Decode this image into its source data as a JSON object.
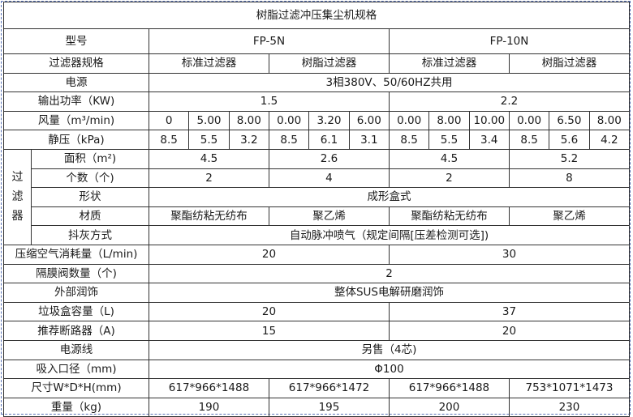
{
  "title": "树脂过滤冲压集尘机规格",
  "filter_group_label": "过\n滤\n器",
  "rows": [
    {
      "label": "型号",
      "cells": [
        {
          "text": "FP-5N",
          "span": 6
        },
        {
          "text": "FP-10N",
          "span": 6
        }
      ]
    },
    {
      "label": "过滤器规格",
      "cells": [
        {
          "text": "标准过滤器",
          "span": 3
        },
        {
          "text": "树脂过滤器",
          "span": 3
        },
        {
          "text": "标准过滤器",
          "span": 3
        },
        {
          "text": "树脂过滤器",
          "span": 3
        }
      ]
    },
    {
      "label": "电源",
      "cells": [
        {
          "text": "3相380V、50/60HZ共用",
          "span": 12
        }
      ]
    },
    {
      "label": "输出功率（KW)",
      "cells": [
        {
          "text": "1.5",
          "span": 6
        },
        {
          "text": "2.2",
          "span": 6
        }
      ]
    },
    {
      "label": "风量（m³/min)",
      "cells": [
        {
          "text": "0",
          "span": 1
        },
        {
          "text": "5.00",
          "span": 1
        },
        {
          "text": "8.00",
          "span": 1
        },
        {
          "text": "0.00",
          "span": 1
        },
        {
          "text": "3.20",
          "span": 1
        },
        {
          "text": "6.00",
          "span": 1
        },
        {
          "text": "0.00",
          "span": 1
        },
        {
          "text": "8.00",
          "span": 1
        },
        {
          "text": "10.00",
          "span": 1
        },
        {
          "text": "0.00",
          "span": 1
        },
        {
          "text": "6.50",
          "span": 1
        },
        {
          "text": "8.00",
          "span": 1
        }
      ]
    },
    {
      "label": "静压（kPa)",
      "cells": [
        {
          "text": "8.5",
          "span": 1
        },
        {
          "text": "5.5",
          "span": 1
        },
        {
          "text": "3.2",
          "span": 1
        },
        {
          "text": "8.5",
          "span": 1
        },
        {
          "text": "6.1",
          "span": 1
        },
        {
          "text": "3.1",
          "span": 1
        },
        {
          "text": "8.5",
          "span": 1
        },
        {
          "text": "5.5",
          "span": 1
        },
        {
          "text": "3.4",
          "span": 1
        },
        {
          "text": "8.5",
          "span": 1
        },
        {
          "text": "5.6",
          "span": 1
        },
        {
          "text": "4.2",
          "span": 1
        }
      ]
    },
    {
      "group": true,
      "label": "面积（m²)",
      "cells": [
        {
          "text": "4.5",
          "span": 3
        },
        {
          "text": "2.6",
          "span": 3
        },
        {
          "text": "4.5",
          "span": 3
        },
        {
          "text": "5.2",
          "span": 3
        }
      ]
    },
    {
      "group": true,
      "label": "个数（个)",
      "cells": [
        {
          "text": "2",
          "span": 3
        },
        {
          "text": "4",
          "span": 3
        },
        {
          "text": "2",
          "span": 3
        },
        {
          "text": "8",
          "span": 3
        }
      ]
    },
    {
      "group": true,
      "label": "形状",
      "cells": [
        {
          "text": "成形盒式",
          "span": 12
        }
      ]
    },
    {
      "group": true,
      "label": "材质",
      "cells": [
        {
          "text": "聚酯纺粘无纺布",
          "span": 3
        },
        {
          "text": "聚乙烯",
          "span": 3
        },
        {
          "text": "聚酯纺粘无纺布",
          "span": 3
        },
        {
          "text": "聚乙烯",
          "span": 3
        }
      ]
    },
    {
      "group": true,
      "label": "抖灰方式",
      "cells": [
        {
          "text": "自动脉冲喷气（规定间隔[压差检测可选])",
          "span": 12
        }
      ]
    },
    {
      "label": "压缩空气消耗量（L/min)",
      "cells": [
        {
          "text": "20",
          "span": 6
        },
        {
          "text": "30",
          "span": 6
        }
      ]
    },
    {
      "label": "隔膜阀数量（个)",
      "cells": [
        {
          "text": "2",
          "span": 12
        }
      ]
    },
    {
      "label": "外部润饰",
      "cells": [
        {
          "text": "整体SUS电解研磨润饰",
          "span": 12
        }
      ]
    },
    {
      "label": "垃圾盒容量（L)",
      "cells": [
        {
          "text": "20",
          "span": 6
        },
        {
          "text": "37",
          "span": 6
        }
      ]
    },
    {
      "label": "推荐断路器（A)",
      "cells": [
        {
          "text": "15",
          "span": 6
        },
        {
          "text": "20",
          "span": 6
        }
      ]
    },
    {
      "label": "电源线",
      "cells": [
        {
          "text": "另售（4芯)",
          "span": 12
        }
      ]
    },
    {
      "label": "吸入口径（mm)",
      "cells": [
        {
          "text": "Φ100",
          "span": 12
        }
      ]
    },
    {
      "label": "尺寸W*D*H(mm)",
      "cells": [
        {
          "text": "617*966*1488",
          "span": 3
        },
        {
          "text": "617*966*1472",
          "span": 3
        },
        {
          "text": "617*966*1488",
          "span": 3
        },
        {
          "text": "753*1071*1473",
          "span": 3
        }
      ]
    },
    {
      "label": "重量（kg)",
      "cells": [
        {
          "text": "190",
          "span": 3
        },
        {
          "text": "195",
          "span": 3
        },
        {
          "text": "200",
          "span": 3
        },
        {
          "text": "230",
          "span": 3
        }
      ]
    }
  ]
}
